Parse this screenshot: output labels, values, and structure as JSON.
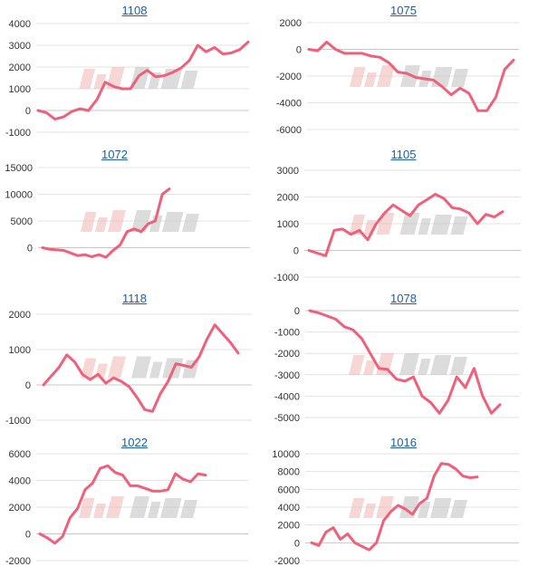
{
  "theme": {
    "line_color": "#f0607a"
  },
  "chart_data": [
    {
      "type": "line",
      "title": "1108",
      "ylim": [
        -1000,
        4000
      ],
      "yticks": [
        -1000,
        0,
        1000,
        2000,
        3000,
        4000
      ],
      "y": [
        0,
        -100,
        -400,
        -300,
        -50,
        80,
        0,
        500,
        1300,
        1100,
        1000,
        1000,
        1600,
        1850,
        1550,
        1600,
        1750,
        1950,
        2300,
        3000,
        2700,
        2900,
        2600,
        2650,
        2800,
        3150
      ]
    },
    {
      "type": "line",
      "title": "1075",
      "ylim": [
        -6000,
        2000
      ],
      "yticks": [
        -6000,
        -4000,
        -2000,
        0,
        2000
      ],
      "y": [
        0,
        -100,
        550,
        0,
        -300,
        -300,
        -300,
        -500,
        -600,
        -1000,
        -1700,
        -1800,
        -2100,
        -2200,
        -2300,
        -2800,
        -3400,
        -2900,
        -3300,
        -4600,
        -4600,
        -3600,
        -1500,
        -800
      ]
    },
    {
      "type": "line",
      "title": "1072",
      "ylim": [
        -5000,
        15000
      ],
      "yticks": [
        0,
        5000,
        10000,
        15000
      ],
      "y": [
        0,
        -300,
        -400,
        -500,
        -1000,
        -1500,
        -1300,
        -1700,
        -1300,
        -1800,
        -500,
        500,
        3000,
        3500,
        3000,
        4500,
        5000,
        10000,
        11000
      ]
    },
    {
      "type": "line",
      "title": "1105",
      "ylim": [
        -1000,
        3000
      ],
      "yticks": [
        -1000,
        0,
        1000,
        2000,
        3000
      ],
      "y": [
        0,
        -100,
        -200,
        750,
        800,
        600,
        750,
        400,
        1000,
        1400,
        1700,
        1500,
        1300,
        1700,
        1900,
        2100,
        1950,
        1600,
        1550,
        1400,
        1000,
        1350,
        1250,
        1450
      ]
    },
    {
      "type": "line",
      "title": "1118",
      "ylim": [
        -1000,
        2000
      ],
      "yticks": [
        -1000,
        0,
        1000,
        2000
      ],
      "y": [
        0,
        250,
        500,
        850,
        650,
        300,
        150,
        300,
        50,
        200,
        100,
        -50,
        -350,
        -700,
        -750,
        -250,
        100,
        600,
        550,
        500,
        800,
        1300,
        1700,
        1450,
        1200,
        900
      ]
    },
    {
      "type": "line",
      "title": "1078",
      "ylim": [
        -5000,
        0
      ],
      "yticks": [
        -5000,
        -4000,
        -3000,
        -2000,
        -1000,
        0
      ],
      "y": [
        0,
        -100,
        -250,
        -400,
        -750,
        -900,
        -1300,
        -2000,
        -2700,
        -2750,
        -3200,
        -3300,
        -3100,
        -4000,
        -4300,
        -4800,
        -4200,
        -3100,
        -3600,
        -2700,
        -4000,
        -4800,
        -4400
      ]
    },
    {
      "type": "line",
      "title": "1022",
      "ylim": [
        -2000,
        6000
      ],
      "yticks": [
        -2000,
        0,
        2000,
        4000,
        6000
      ],
      "y": [
        0,
        -300,
        -700,
        -200,
        1200,
        1900,
        3300,
        3800,
        4900,
        5100,
        4600,
        4400,
        3600,
        3600,
        3400,
        3200,
        3200,
        3300,
        4500,
        4100,
        3900,
        4500,
        4400
      ]
    },
    {
      "type": "line",
      "title": "1016",
      "ylim": [
        -2000,
        10000
      ],
      "yticks": [
        -2000,
        0,
        2000,
        4000,
        6000,
        8000,
        10000
      ],
      "y": [
        0,
        -300,
        1200,
        1700,
        400,
        1000,
        0,
        -400,
        -800,
        0,
        2500,
        3500,
        4200,
        3800,
        3200,
        4400,
        5000,
        7500,
        8900,
        8800,
        8300,
        7500,
        7300,
        7400
      ]
    }
  ]
}
